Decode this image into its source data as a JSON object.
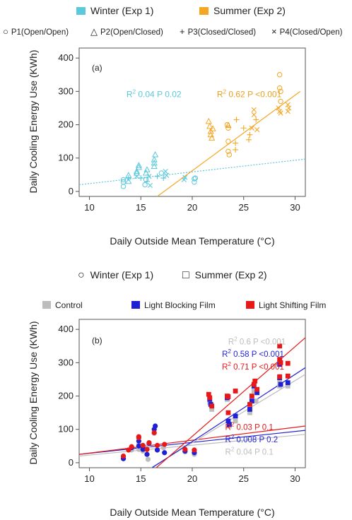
{
  "chart_data": [
    {
      "type": "scatter",
      "panel_label": "(a)",
      "xlabel": "Daily Outside Mean Temperature (°C)",
      "ylabel": "Daily Cooling Energy Use (KWh)",
      "xlim": [
        9,
        31
      ],
      "ylim": [
        -15,
        430
      ],
      "xticks": [
        10,
        15,
        20,
        25,
        30
      ],
      "yticks": [
        0,
        100,
        200,
        300,
        400
      ],
      "grid": false,
      "legend_color": [
        {
          "label": "Winter (Exp 1)",
          "color": "#5bc8dc"
        },
        {
          "label": "Summer (Exp 2)",
          "color": "#f5a623"
        }
      ],
      "legend_shape": [
        {
          "label": "P1(Open/Open)",
          "symbol": "○"
        },
        {
          "label": "P2(Open/Closed)",
          "symbol": "△"
        },
        {
          "label": "P3(Closed/Closed)",
          "symbol": "+"
        },
        {
          "label": "P4(Closed/Open)",
          "symbol": "×"
        }
      ],
      "annotations": [
        {
          "r2": "0.04",
          "p": "P 0.02",
          "color": "#5bc8dc",
          "x": 13.6,
          "y": 283
        },
        {
          "r2": "0.62",
          "p": "P <0.001",
          "color": "#e8a020",
          "x": 22.4,
          "y": 283
        }
      ],
      "series": [
        {
          "season": "winter",
          "color": "#5bc8dc",
          "points": [
            {
              "x": 13.3,
              "y": 15,
              "s": "o"
            },
            {
              "x": 13.3,
              "y": 28,
              "s": "o"
            },
            {
              "x": 13.3,
              "y": 35,
              "s": "o"
            },
            {
              "x": 13.8,
              "y": 30,
              "s": "^"
            },
            {
              "x": 13.8,
              "y": 40,
              "s": "+"
            },
            {
              "x": 13.8,
              "y": 48,
              "s": "^"
            },
            {
              "x": 14.6,
              "y": 55,
              "s": "^"
            },
            {
              "x": 14.6,
              "y": 60,
              "s": "^"
            },
            {
              "x": 14.8,
              "y": 72,
              "s": "^"
            },
            {
              "x": 14.8,
              "y": 78,
              "s": "^"
            },
            {
              "x": 14.6,
              "y": 45,
              "s": "x"
            },
            {
              "x": 15.0,
              "y": 40,
              "s": "+"
            },
            {
              "x": 15.4,
              "y": 20,
              "s": "o"
            },
            {
              "x": 15.5,
              "y": 35,
              "s": "o"
            },
            {
              "x": 15.5,
              "y": 55,
              "s": "^"
            },
            {
              "x": 15.6,
              "y": 65,
              "s": "^"
            },
            {
              "x": 15.6,
              "y": 30,
              "s": "+"
            },
            {
              "x": 15.8,
              "y": 45,
              "s": "x"
            },
            {
              "x": 15.9,
              "y": 18,
              "s": "x"
            },
            {
              "x": 16.3,
              "y": 85,
              "s": "^"
            },
            {
              "x": 16.3,
              "y": 95,
              "s": "^"
            },
            {
              "x": 16.4,
              "y": 110,
              "s": "^"
            },
            {
              "x": 16.3,
              "y": 75,
              "s": "^"
            },
            {
              "x": 16.6,
              "y": 45,
              "s": "+"
            },
            {
              "x": 17.0,
              "y": 55,
              "s": "o"
            },
            {
              "x": 17.2,
              "y": 40,
              "s": "+"
            },
            {
              "x": 17.4,
              "y": 60,
              "s": "x"
            },
            {
              "x": 17.5,
              "y": 48,
              "s": "x"
            },
            {
              "x": 19.2,
              "y": 35,
              "s": "x"
            },
            {
              "x": 19.3,
              "y": 42,
              "s": "x"
            },
            {
              "x": 20.2,
              "y": 28,
              "s": "o"
            },
            {
              "x": 20.2,
              "y": 38,
              "s": "o"
            },
            {
              "x": 20.3,
              "y": 40,
              "s": "o"
            }
          ]
        },
        {
          "season": "summer",
          "color": "#f5a623",
          "points": [
            {
              "x": 21.6,
              "y": 210,
              "s": "^"
            },
            {
              "x": 21.7,
              "y": 195,
              "s": "^"
            },
            {
              "x": 21.8,
              "y": 180,
              "s": "^"
            },
            {
              "x": 21.8,
              "y": 170,
              "s": "^"
            },
            {
              "x": 21.9,
              "y": 160,
              "s": "^"
            },
            {
              "x": 22.0,
              "y": 188,
              "s": "^"
            },
            {
              "x": 23.4,
              "y": 200,
              "s": "o"
            },
            {
              "x": 23.5,
              "y": 198,
              "s": "^"
            },
            {
              "x": 23.5,
              "y": 190,
              "s": "o"
            },
            {
              "x": 23.5,
              "y": 150,
              "s": "o"
            },
            {
              "x": 23.5,
              "y": 120,
              "s": "o"
            },
            {
              "x": 23.6,
              "y": 110,
              "s": "o"
            },
            {
              "x": 24.2,
              "y": 125,
              "s": "+"
            },
            {
              "x": 24.2,
              "y": 145,
              "s": "+"
            },
            {
              "x": 24.3,
              "y": 215,
              "s": "+"
            },
            {
              "x": 25.0,
              "y": 190,
              "s": "+"
            },
            {
              "x": 25.5,
              "y": 155,
              "s": "+"
            },
            {
              "x": 25.6,
              "y": 170,
              "s": "+"
            },
            {
              "x": 25.8,
              "y": 190,
              "s": "x"
            },
            {
              "x": 26.0,
              "y": 230,
              "s": "x"
            },
            {
              "x": 26.0,
              "y": 245,
              "s": "x"
            },
            {
              "x": 26.2,
              "y": 215,
              "s": "+"
            },
            {
              "x": 26.3,
              "y": 185,
              "s": "x"
            },
            {
              "x": 28.5,
              "y": 350,
              "s": "o"
            },
            {
              "x": 28.5,
              "y": 310,
              "s": "o"
            },
            {
              "x": 28.6,
              "y": 300,
              "s": "o"
            },
            {
              "x": 28.4,
              "y": 250,
              "s": "x"
            },
            {
              "x": 28.5,
              "y": 240,
              "s": "x"
            },
            {
              "x": 28.6,
              "y": 235,
              "s": "x"
            },
            {
              "x": 29.3,
              "y": 260,
              "s": "x"
            },
            {
              "x": 29.3,
              "y": 240,
              "s": "x"
            },
            {
              "x": 29.4,
              "y": 250,
              "s": "x"
            },
            {
              "x": 28.6,
              "y": 270,
              "s": "o"
            }
          ]
        }
      ],
      "fit_lines": [
        {
          "color": "#5bc8dc",
          "style": "dotted",
          "x1": 9,
          "y1": 20,
          "x2": 31,
          "y2": 97
        },
        {
          "color": "#f5a623",
          "style": "solid",
          "x1": 16.6,
          "y1": -15,
          "x2": 30.5,
          "y2": 300
        }
      ]
    },
    {
      "type": "scatter",
      "panel_label": "(b)",
      "xlabel": "Daily Outside Mean Temperature (°C)",
      "ylabel": "Daily Cooling Energy Use (KWh)",
      "xlim": [
        9,
        31
      ],
      "ylim": [
        -15,
        430
      ],
      "xticks": [
        10,
        15,
        20,
        25,
        30
      ],
      "yticks": [
        0,
        100,
        200,
        300,
        400
      ],
      "grid": false,
      "legend_shape": [
        {
          "label": "Winter (Exp 1)",
          "symbol": "○"
        },
        {
          "label": "Summer (Exp 2)",
          "symbol": "□"
        }
      ],
      "legend_color": [
        {
          "label": "Control",
          "color": "#bdbdbd"
        },
        {
          "label": "Light Blocking Film",
          "color": "#1f1fd6"
        },
        {
          "label": "Light Shifting Film",
          "color": "#e81818"
        }
      ],
      "annotations": [
        {
          "r2": "0.6",
          "p": "P <0.001",
          "color": "#bdbdbd",
          "x": 23.5,
          "y": 355
        },
        {
          "r2": "0.58",
          "p": "P <0.001",
          "color": "#1f1fd6",
          "x": 22.9,
          "y": 318
        },
        {
          "r2": "0.71",
          "p": "P <0.001",
          "color": "#e81818",
          "x": 22.9,
          "y": 280
        },
        {
          "r2": "0.03",
          "p": "P 0.1",
          "color": "#e81818",
          "x": 23.2,
          "y": 98
        },
        {
          "r2": "0.008",
          "p": "P 0.2",
          "color": "#1f1fd6",
          "x": 23.2,
          "y": 61
        },
        {
          "r2": "0.04",
          "p": "P 0.1",
          "color": "#bdbdbd",
          "x": 23.2,
          "y": 24
        }
      ],
      "series": [
        {
          "group": "Control",
          "color": "#bdbdbd",
          "winter": [
            [
              13.3,
              15
            ],
            [
              14.1,
              38
            ],
            [
              14.8,
              40
            ],
            [
              14.8,
              55
            ],
            [
              15.2,
              35
            ],
            [
              15.7,
              10
            ],
            [
              15.7,
              50
            ],
            [
              16.3,
              88
            ],
            [
              16.6,
              40
            ],
            [
              17.2,
              45
            ],
            [
              19.3,
              32
            ],
            [
              20.2,
              25
            ]
          ],
          "summer": [
            [
              21.7,
              180
            ],
            [
              21.9,
              160
            ],
            [
              23.4,
              190
            ],
            [
              23.6,
              110
            ],
            [
              24.2,
              125
            ],
            [
              25.6,
              150
            ],
            [
              26.0,
              215
            ],
            [
              26.2,
              185
            ],
            [
              28.5,
              300
            ],
            [
              28.5,
              230
            ],
            [
              29.3,
              230
            ],
            [
              28.5,
              245
            ]
          ]
        },
        {
          "group": "Light Blocking Film",
          "color": "#1f1fd6",
          "winter": [
            [
              13.3,
              12
            ],
            [
              14.1,
              45
            ],
            [
              14.8,
              65
            ],
            [
              14.8,
              50
            ],
            [
              15.2,
              40
            ],
            [
              15.6,
              25
            ],
            [
              15.8,
              58
            ],
            [
              16.3,
              100
            ],
            [
              16.4,
              110
            ],
            [
              16.6,
              38
            ],
            [
              17.3,
              30
            ],
            [
              19.3,
              35
            ],
            [
              20.2,
              30
            ]
          ],
          "summer": [
            [
              21.7,
              190
            ],
            [
              21.8,
              175
            ],
            [
              23.4,
              195
            ],
            [
              23.5,
              125
            ],
            [
              23.6,
              115
            ],
            [
              24.2,
              140
            ],
            [
              25.6,
              160
            ],
            [
              25.8,
              185
            ],
            [
              26.0,
              230
            ],
            [
              26.3,
              210
            ],
            [
              28.5,
              295
            ],
            [
              28.5,
              255
            ],
            [
              29.3,
              240
            ],
            [
              28.6,
              235
            ]
          ]
        },
        {
          "group": "Light Shifting Film",
          "color": "#e81818",
          "winter": [
            [
              13.3,
              20
            ],
            [
              13.8,
              38
            ],
            [
              14.1,
              48
            ],
            [
              14.8,
              75
            ],
            [
              14.8,
              78
            ],
            [
              15.2,
              52
            ],
            [
              15.6,
              40
            ],
            [
              15.8,
              60
            ],
            [
              16.3,
              90
            ],
            [
              16.6,
              52
            ],
            [
              17.3,
              55
            ],
            [
              19.3,
              40
            ],
            [
              20.2,
              38
            ]
          ],
          "summer": [
            [
              21.6,
              205
            ],
            [
              21.7,
              195
            ],
            [
              21.9,
              170
            ],
            [
              23.4,
              200
            ],
            [
              23.5,
              198
            ],
            [
              23.5,
              150
            ],
            [
              24.2,
              215
            ],
            [
              25.6,
              175
            ],
            [
              25.8,
              200
            ],
            [
              26.0,
              235
            ],
            [
              26.1,
              245
            ],
            [
              26.3,
              220
            ],
            [
              28.5,
              350
            ],
            [
              28.5,
              310
            ],
            [
              28.6,
              300
            ],
            [
              28.5,
              258
            ],
            [
              29.3,
              298
            ],
            [
              29.3,
              260
            ]
          ]
        }
      ],
      "fit_lines": [
        {
          "color": "#bdbdbd",
          "style": "solid",
          "x1": 9,
          "y1": 20,
          "x2": 31,
          "y2": 85
        },
        {
          "color": "#1f1fd6",
          "style": "solid",
          "x1": 9,
          "y1": 25,
          "x2": 31,
          "y2": 97
        },
        {
          "color": "#e81818",
          "style": "solid",
          "x1": 9,
          "y1": 25,
          "x2": 31,
          "y2": 110
        },
        {
          "color": "#bdbdbd",
          "style": "solid",
          "x1": 16.0,
          "y1": -15,
          "x2": 31,
          "y2": 265
        },
        {
          "color": "#1f1fd6",
          "style": "solid",
          "x1": 16.1,
          "y1": -15,
          "x2": 31,
          "y2": 285
        },
        {
          "color": "#e81818",
          "style": "solid",
          "x1": 16.5,
          "y1": -15,
          "x2": 31,
          "y2": 375
        }
      ]
    }
  ]
}
